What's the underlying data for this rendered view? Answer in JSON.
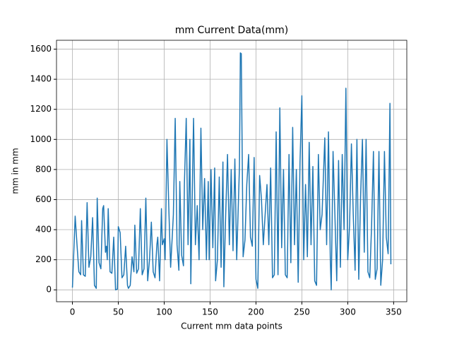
{
  "chart_data": {
    "type": "line",
    "title": "mm Current Data(mm)",
    "x_label": "Current mm data points",
    "y_label": "mm in mm",
    "xlim": [
      -17.35,
      364.35
    ],
    "xticks": [
      0,
      50,
      100,
      150,
      200,
      250,
      300,
      350
    ],
    "ylim": [
      -79,
      1659
    ],
    "yticks": [
      0,
      200,
      400,
      600,
      800,
      1000,
      1200,
      1400,
      1600
    ],
    "grid": true,
    "x": [
      0,
      3,
      5,
      7,
      9,
      10,
      12,
      14,
      16,
      18,
      20,
      22,
      24,
      26,
      27,
      29,
      31,
      33,
      34,
      36,
      37,
      38,
      39,
      41,
      43,
      45,
      47,
      49,
      50,
      52,
      54,
      56,
      58,
      60,
      61,
      63,
      65,
      67,
      68,
      70,
      72,
      74,
      76,
      78,
      80,
      82,
      84,
      86,
      88,
      90,
      92,
      93,
      95,
      97,
      98,
      100,
      101,
      103,
      105,
      107,
      109,
      110,
      112,
      114,
      116,
      117,
      119,
      121,
      122,
      124,
      126,
      128,
      129,
      131,
      132,
      134,
      136,
      138,
      140,
      142,
      144,
      146,
      148,
      149,
      151,
      153,
      155,
      156,
      158,
      160,
      162,
      164,
      165,
      167,
      169,
      171,
      173,
      175,
      177,
      179,
      182,
      183,
      184,
      186,
      188,
      190,
      192,
      194,
      196,
      198,
      200,
      202,
      204,
      206,
      208,
      210,
      212,
      214,
      216,
      218,
      220,
      222,
      224,
      226,
      228,
      230,
      232,
      234,
      236,
      238,
      240,
      242,
      244,
      246,
      248,
      250,
      252,
      254,
      256,
      258,
      260,
      262,
      264,
      266,
      268,
      270,
      272,
      275,
      277,
      279,
      281,
      282,
      284,
      286,
      288,
      290,
      292,
      294,
      296,
      298,
      300,
      302,
      304,
      306,
      308,
      310,
      312,
      314,
      316,
      318,
      320,
      322,
      324,
      326,
      328,
      330,
      332,
      334,
      336,
      338,
      340,
      342,
      344,
      346,
      347
    ],
    "series": [
      {
        "name": "mm",
        "color": "#1f77b4",
        "values": [
          15,
          490,
          300,
          120,
          100,
          460,
          100,
          90,
          580,
          150,
          220,
          480,
          30,
          10,
          610,
          180,
          140,
          540,
          560,
          250,
          290,
          200,
          540,
          120,
          110,
          350,
          0,
          5,
          420,
          380,
          80,
          100,
          290,
          30,
          10,
          30,
          220,
          120,
          430,
          110,
          140,
          540,
          100,
          140,
          610,
          60,
          200,
          450,
          120,
          80,
          300,
          350,
          60,
          540,
          300,
          340,
          200,
          1000,
          550,
          150,
          380,
          500,
          1140,
          300,
          130,
          720,
          230,
          160,
          700,
          1140,
          300,
          1000,
          40,
          800,
          1140,
          300,
          560,
          200,
          1075,
          400,
          740,
          200,
          720,
          200,
          800,
          280,
          810,
          60,
          200,
          750,
          150,
          850,
          20,
          500,
          900,
          300,
          800,
          260,
          870,
          200,
          820,
          1575,
          1570,
          220,
          330,
          700,
          900,
          350,
          290,
          880,
          70,
          10,
          760,
          600,
          300,
          500,
          700,
          300,
          810,
          80,
          100,
          1050,
          100,
          1210,
          280,
          800,
          100,
          80,
          900,
          180,
          1080,
          300,
          800,
          50,
          850,
          1290,
          200,
          700,
          220,
          980,
          300,
          820,
          60,
          30,
          900,
          400,
          500,
          1010,
          300,
          1050,
          200,
          0,
          920,
          500,
          60,
          860,
          150,
          900,
          400,
          1340,
          200,
          430,
          970,
          500,
          130,
          1000,
          70,
          620,
          1000,
          250,
          1000,
          120,
          80,
          430,
          920,
          70,
          140,
          920,
          30,
          200,
          920,
          350,
          240,
          1240,
          170
        ]
      }
    ]
  }
}
